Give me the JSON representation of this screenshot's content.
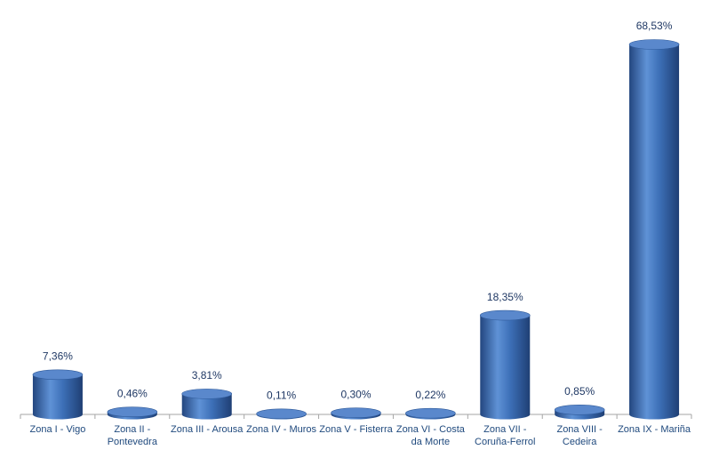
{
  "chart_data": {
    "type": "bar",
    "categories": [
      "Zona I - Vigo",
      "Zona II - Pontevedra",
      "Zona III - Arousa",
      "Zona IV - Muros",
      "Zona V - Fisterra",
      "Zona VI - Costa da Morte",
      "Zona VII - Coruña-Ferrol",
      "Zona VIII - Cedeira",
      "Zona IX - Mariña"
    ],
    "values": [
      7.36,
      0.46,
      3.81,
      0.11,
      0.3,
      0.22,
      18.35,
      0.85,
      68.53
    ],
    "value_labels": [
      "7,36%",
      "0,46%",
      "3,81%",
      "0,11%",
      "0,30%",
      "0,22%",
      "18,35%",
      "0,85%",
      "68,53%"
    ],
    "color": "#3a6db5"
  }
}
